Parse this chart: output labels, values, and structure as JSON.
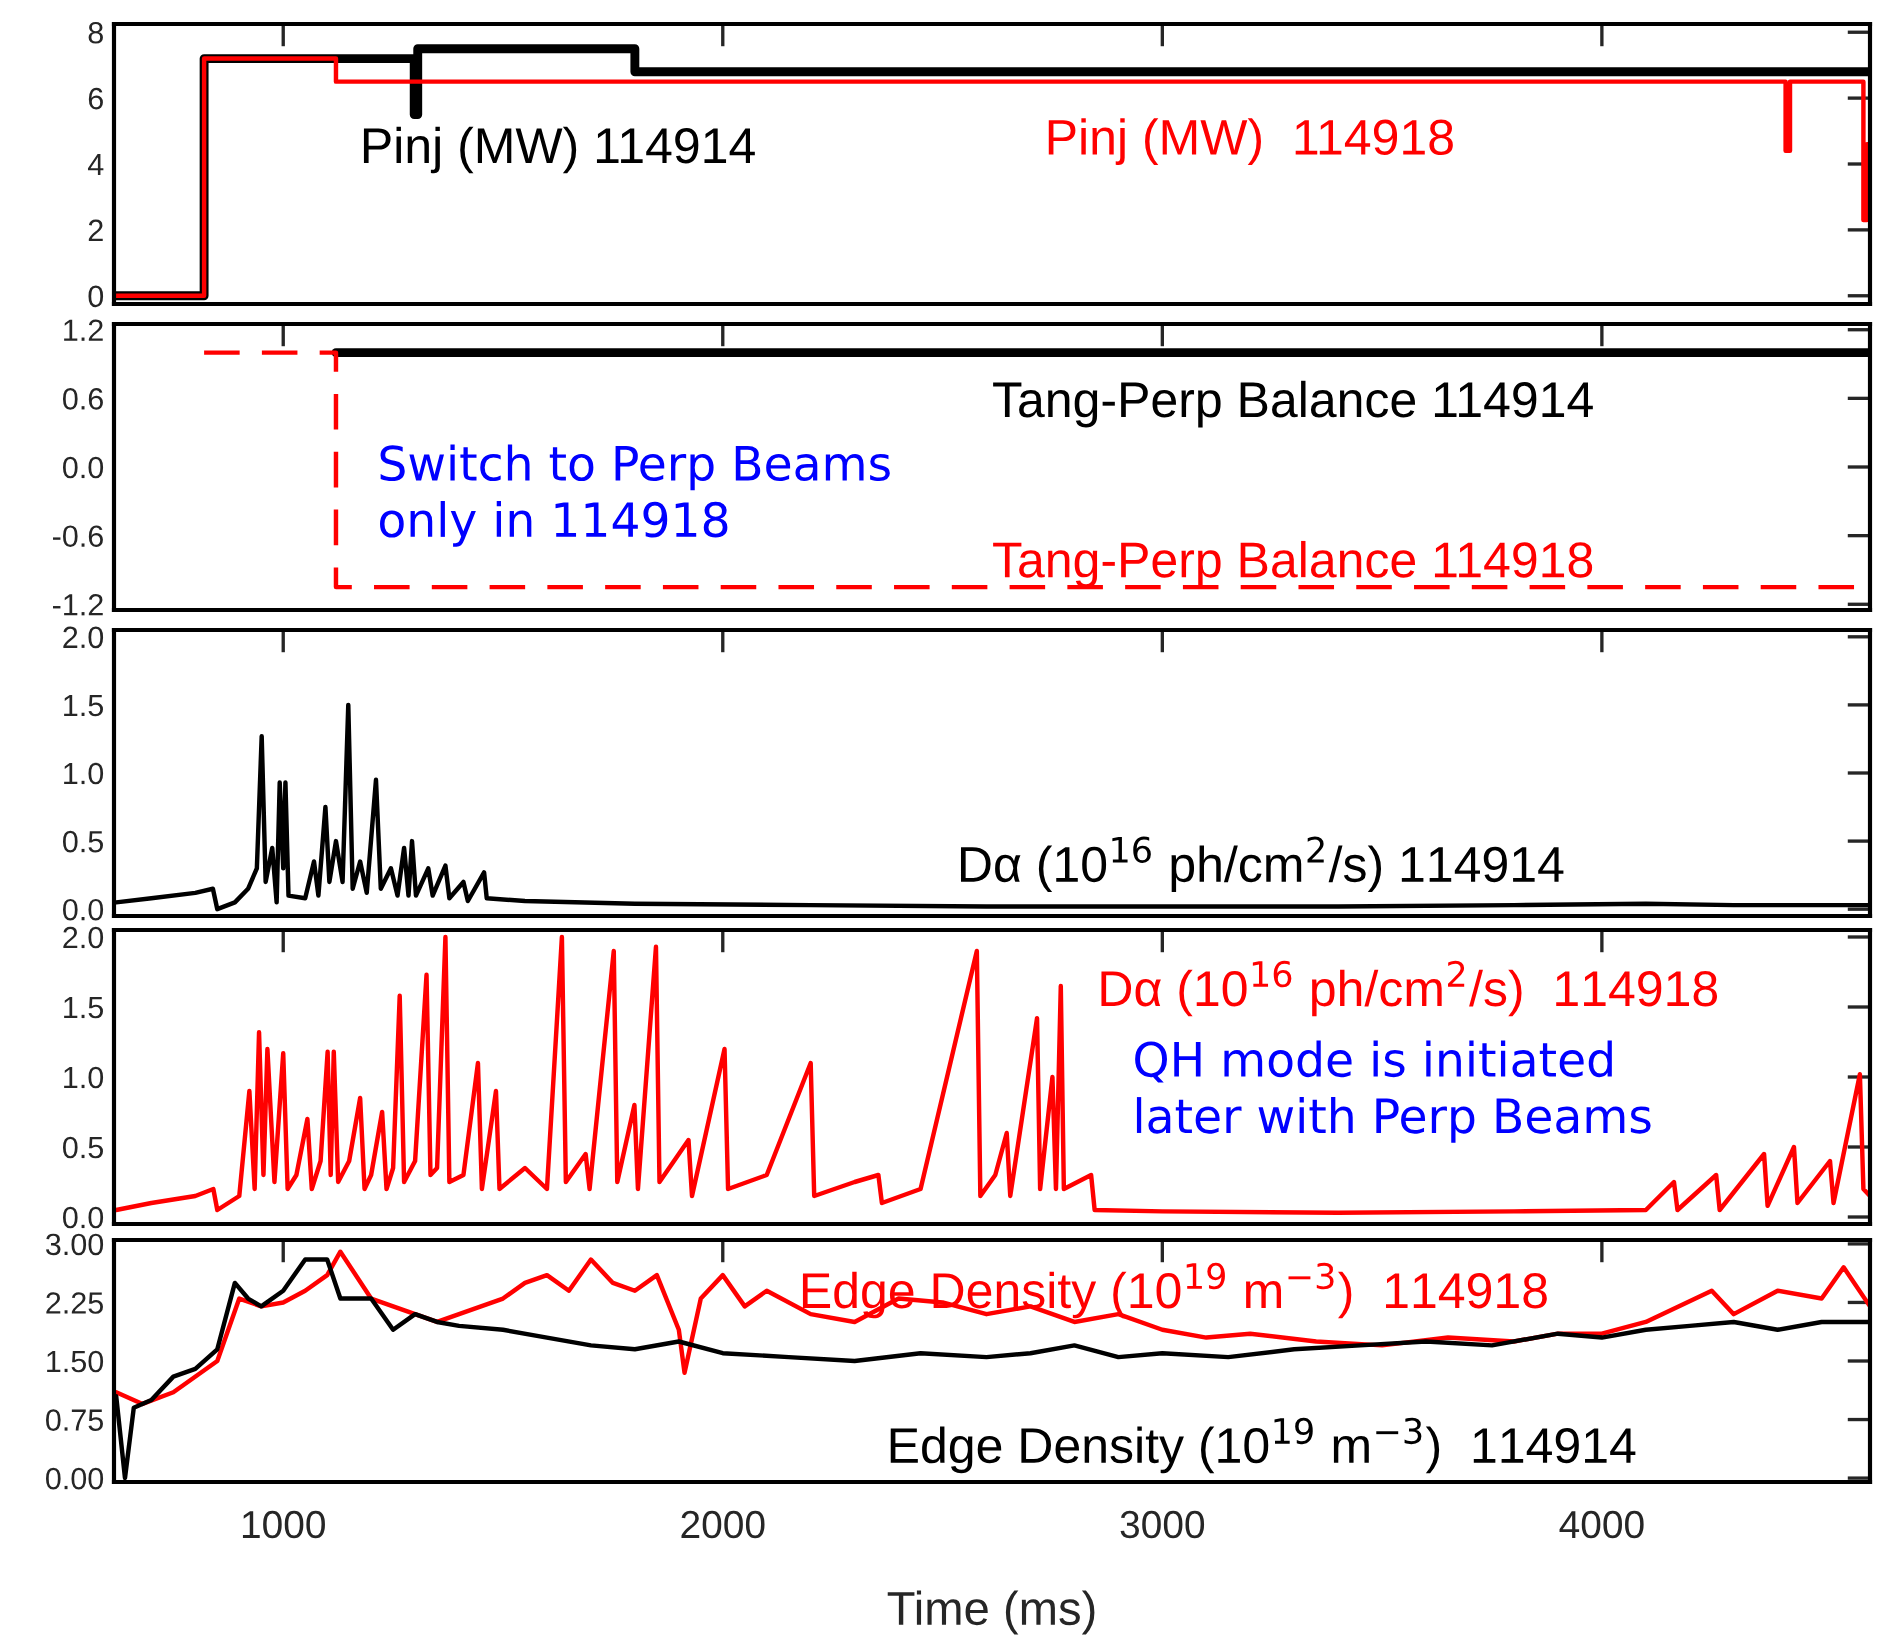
{
  "chart_data": [
    {
      "type": "step",
      "xlim": [
        615,
        4610
      ],
      "ylim": [
        -0.25,
        8.25
      ],
      "yticks": [
        0,
        2,
        4,
        6,
        8
      ],
      "xticks": [
        1000,
        2000,
        3000,
        4000
      ],
      "tick_labels": "y",
      "grid": false,
      "legend": false,
      "series": [
        {
          "name": "Pinj (MW) 114914",
          "color": "#000000",
          "x": [
            615,
            820,
            1298,
            1306,
            1800,
            4610
          ],
          "values": [
            0,
            7.2,
            5.5,
            7.5,
            6.8,
            6.8
          ]
        },
        {
          "name": "Pinj (MW)  114918",
          "color": "#ff0000",
          "x": [
            615,
            820,
            1120,
            4418,
            4428,
            4595,
            4603,
            4610
          ],
          "values": [
            0,
            7.2,
            6.5,
            4.4,
            6.5,
            2.3,
            4.6,
            4.6
          ]
        }
      ]
    },
    {
      "type": "step",
      "xlim": [
        615,
        4610
      ],
      "ylim": [
        -1.25,
        1.25
      ],
      "yticks": [
        -1.2,
        -0.6,
        {
          "value": 0,
          "label": "0.0"
        },
        0.6,
        1.2
      ],
      "xticks": [
        1000,
        2000,
        3000,
        4000
      ],
      "tick_labels": "y",
      "grid": false,
      "legend": false,
      "annotations": [
        "Switch to Perp Beams\nonly in 114918"
      ],
      "series": [
        {
          "name": "Tang-Perp Balance 114914",
          "color": "#000000",
          "line_style": "solid",
          "x": [
            1120,
            4610
          ],
          "values": [
            1.0,
            1.0
          ]
        },
        {
          "name": "Tang-Perp Balance 114918",
          "color": "#ff0000",
          "line_style": "dashed",
          "x": [
            820,
            1120,
            4610
          ],
          "values": [
            1.0,
            -1.05,
            -1.05
          ]
        }
      ]
    },
    {
      "type": "line",
      "xlim": [
        615,
        4610
      ],
      "ylim": [
        -0.05,
        2.05
      ],
      "yticks": [
        {
          "value": 0,
          "label": "0.0"
        },
        0.5,
        {
          "value": 1,
          "label": "1.0"
        },
        1.5,
        {
          "value": 2,
          "label": "2.0"
        }
      ],
      "xticks": [
        1000,
        2000,
        3000,
        4000
      ],
      "tick_labels": "y",
      "grid": false,
      "legend": false,
      "series": [
        {
          "name": "Dα (10$^{16}$ ph/cm$^{2}$/s) 114914",
          "color": "#000000",
          "x": [
            620,
            700,
            800,
            840,
            850,
            890,
            920,
            940,
            951,
            960,
            975,
            985,
            992,
            1000,
            1005,
            1012,
            1050,
            1070,
            1080,
            1096,
            1105,
            1120,
            1135,
            1148,
            1158,
            1175,
            1190,
            1211,
            1222,
            1245,
            1260,
            1275,
            1285,
            1293,
            1302,
            1330,
            1340,
            1369,
            1378,
            1410,
            1420,
            1457,
            1463,
            1550,
            1800,
            2200,
            2600,
            3000,
            3400,
            3800,
            4100,
            4300,
            4610
          ],
          "values": [
            0.05,
            0.08,
            0.12,
            0.15,
            0.0,
            0.05,
            0.15,
            0.3,
            1.27,
            0.2,
            0.45,
            0.05,
            0.93,
            0.3,
            0.93,
            0.1,
            0.08,
            0.35,
            0.1,
            0.75,
            0.2,
            0.5,
            0.2,
            1.5,
            0.15,
            0.35,
            0.12,
            0.95,
            0.15,
            0.3,
            0.1,
            0.45,
            0.1,
            0.5,
            0.1,
            0.3,
            0.1,
            0.32,
            0.08,
            0.2,
            0.06,
            0.27,
            0.08,
            0.06,
            0.04,
            0.03,
            0.02,
            0.02,
            0.02,
            0.03,
            0.04,
            0.03,
            0.03
          ]
        }
      ]
    },
    {
      "type": "line",
      "xlim": [
        615,
        4610
      ],
      "ylim": [
        -0.05,
        2.05
      ],
      "yticks": [
        {
          "value": 0,
          "label": "0.0"
        },
        0.5,
        {
          "value": 1,
          "label": "1.0"
        },
        1.5,
        {
          "value": 2,
          "label": "2.0"
        }
      ],
      "xticks": [
        1000,
        2000,
        3000,
        4000
      ],
      "tick_labels": "y",
      "grid": false,
      "legend": false,
      "annotations": [
        "QH mode is initiated\nlater with Perp Beams"
      ],
      "series": [
        {
          "name": "Dα (10$^{16}$ ph/cm$^{2}$/s)  114918",
          "color": "#ff0000",
          "x": [
            620,
            700,
            800,
            841,
            850,
            900,
            923,
            935,
            945,
            955,
            964,
            980,
            1000,
            1010,
            1030,
            1055,
            1065,
            1085,
            1101,
            1108,
            1115,
            1125,
            1150,
            1175,
            1185,
            1200,
            1225,
            1235,
            1250,
            1265,
            1275,
            1300,
            1326,
            1335,
            1350,
            1369,
            1378,
            1410,
            1443,
            1452,
            1484,
            1492,
            1550,
            1600,
            1634,
            1643,
            1688,
            1697,
            1752,
            1760,
            1799,
            1807,
            1848,
            1856,
            1922,
            1930,
            2004,
            2012,
            2100,
            2200,
            2208,
            2300,
            2354,
            2362,
            2450,
            2578,
            2586,
            2620,
            2646,
            2654,
            2715,
            2722,
            2750,
            2758,
            2769,
            2776,
            2838,
            2846,
            3000,
            3400,
            3800,
            4100,
            4164,
            4172,
            4260,
            4268,
            4369,
            4377,
            4437,
            4445,
            4519,
            4527,
            4587,
            4595,
            4610
          ],
          "values": [
            0.05,
            0.1,
            0.15,
            0.2,
            0.05,
            0.15,
            0.9,
            0.2,
            1.32,
            0.3,
            1.2,
            0.25,
            1.17,
            0.2,
            0.3,
            0.7,
            0.2,
            0.4,
            1.18,
            0.3,
            1.18,
            0.25,
            0.4,
            0.85,
            0.2,
            0.3,
            0.75,
            0.2,
            0.35,
            1.58,
            0.25,
            0.4,
            1.73,
            0.3,
            0.35,
            2.0,
            0.25,
            0.3,
            1.1,
            0.2,
            0.9,
            0.2,
            0.35,
            0.2,
            2.0,
            0.25,
            0.45,
            0.2,
            1.9,
            0.25,
            0.8,
            0.2,
            1.93,
            0.25,
            0.55,
            0.15,
            1.2,
            0.2,
            0.3,
            1.1,
            0.15,
            0.25,
            0.3,
            0.1,
            0.2,
            1.9,
            0.15,
            0.3,
            0.6,
            0.15,
            1.42,
            0.2,
            1.0,
            0.2,
            1.65,
            0.2,
            0.3,
            0.05,
            0.04,
            0.03,
            0.04,
            0.05,
            0.25,
            0.05,
            0.3,
            0.05,
            0.45,
            0.08,
            0.5,
            0.1,
            0.4,
            0.1,
            1.02,
            0.2,
            0.15
          ]
        }
      ]
    },
    {
      "type": "line",
      "xlim": [
        615,
        4610
      ],
      "ylim": [
        -0.05,
        3.05
      ],
      "yticks": [
        {
          "value": 0,
          "label": "0.00"
        },
        0.75,
        {
          "value": 1.5,
          "label": "1.50"
        },
        2.25,
        {
          "value": 3,
          "label": "3.00"
        }
      ],
      "xticks": [
        1000,
        2000,
        3000,
        4000
      ],
      "xlabel": "Time (ms)",
      "grid": false,
      "legend": false,
      "series": [
        {
          "name": "Edge Density (10$^{19}$ m$^{−3}$)  114918",
          "color": "#ff0000",
          "x": [
            620,
            680,
            750,
            850,
            900,
            950,
            1000,
            1050,
            1100,
            1130,
            1200,
            1250,
            1300,
            1350,
            1400,
            1450,
            1500,
            1550,
            1600,
            1650,
            1700,
            1750,
            1800,
            1850,
            1900,
            1913,
            1950,
            2000,
            2050,
            2100,
            2200,
            2300,
            2400,
            2500,
            2600,
            2700,
            2800,
            2900,
            3000,
            3100,
            3200,
            3350,
            3500,
            3650,
            3800,
            3900,
            4000,
            4100,
            4250,
            4300,
            4400,
            4500,
            4550,
            4610
          ],
          "values": [
            1.1,
            0.95,
            1.1,
            1.5,
            2.3,
            2.2,
            2.25,
            2.4,
            2.6,
            2.9,
            2.3,
            2.2,
            2.1,
            2.0,
            2.1,
            2.2,
            2.3,
            2.5,
            2.6,
            2.4,
            2.8,
            2.5,
            2.4,
            2.6,
            1.9,
            1.35,
            2.3,
            2.6,
            2.2,
            2.4,
            2.1,
            2.0,
            2.3,
            2.25,
            2.1,
            2.2,
            2.0,
            2.1,
            1.9,
            1.8,
            1.85,
            1.75,
            1.7,
            1.8,
            1.75,
            1.85,
            1.85,
            2.0,
            2.4,
            2.1,
            2.4,
            2.3,
            2.7,
            2.2
          ]
        },
        {
          "name": "Edge Density (10$^{19}$ m$^{−3}$)  114914",
          "color": "#000000",
          "x": [
            620,
            640,
            660,
            700,
            750,
            800,
            850,
            890,
            920,
            950,
            1000,
            1050,
            1100,
            1130,
            1200,
            1250,
            1300,
            1350,
            1400,
            1500,
            1600,
            1700,
            1800,
            1900,
            2000,
            2150,
            2300,
            2450,
            2600,
            2700,
            2800,
            2900,
            3000,
            3150,
            3300,
            3450,
            3600,
            3750,
            3900,
            4000,
            4100,
            4200,
            4300,
            4400,
            4500,
            4610
          ],
          "values": [
            1.05,
            0.0,
            0.9,
            1.0,
            1.3,
            1.4,
            1.65,
            2.5,
            2.3,
            2.2,
            2.4,
            2.8,
            2.8,
            2.3,
            2.3,
            1.9,
            2.1,
            2.0,
            1.95,
            1.9,
            1.8,
            1.7,
            1.65,
            1.75,
            1.6,
            1.55,
            1.5,
            1.6,
            1.55,
            1.6,
            1.7,
            1.55,
            1.6,
            1.55,
            1.65,
            1.7,
            1.75,
            1.7,
            1.85,
            1.8,
            1.9,
            1.95,
            2.0,
            1.9,
            2.0,
            2.0
          ]
        }
      ]
    }
  ]
}
